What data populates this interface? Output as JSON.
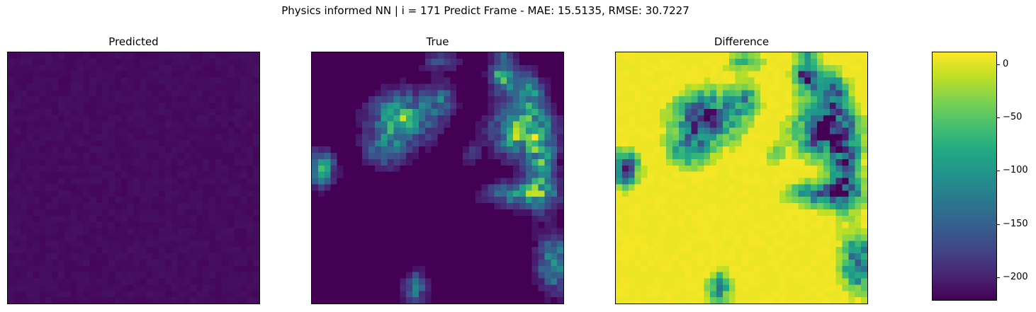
{
  "chart_data": {
    "type": "heatmap",
    "title": "Physics informed NN | i = 171 Predict Frame - MAE: 15.5135, RMSE: 30.7227",
    "panels": [
      {
        "name": "predicted",
        "title": "Predicted"
      },
      {
        "name": "true",
        "title": "True"
      },
      {
        "name": "difference",
        "title": "Difference"
      }
    ],
    "grid_size": [
      40,
      40
    ],
    "colormap": "viridis",
    "colorbar": {
      "range": [
        -222,
        12
      ],
      "ticks": [
        0,
        -50,
        -100,
        -150,
        -200
      ],
      "tick_labels": [
        "0",
        "−50",
        "−100",
        "−150",
        "−200"
      ]
    },
    "predicted_value_approx": -210,
    "blobs": [
      {
        "cx": 14,
        "cy": 10,
        "sx": 3.2,
        "sy": 2.6,
        "amp": 150
      },
      {
        "cx": 11,
        "cy": 15,
        "sx": 2.0,
        "sy": 1.8,
        "amp": 90
      },
      {
        "cx": 20,
        "cy": 7,
        "sx": 1.4,
        "sy": 2.0,
        "amp": 70
      },
      {
        "cx": 30,
        "cy": 3,
        "sx": 1.3,
        "sy": 2.2,
        "amp": 150
      },
      {
        "cx": 33,
        "cy": 12,
        "sx": 3.0,
        "sy": 2.6,
        "amp": 170
      },
      {
        "cx": 34,
        "cy": 6,
        "sx": 1.5,
        "sy": 2.0,
        "amp": 110
      },
      {
        "cx": 36,
        "cy": 18,
        "sx": 1.5,
        "sy": 4.0,
        "amp": 120
      },
      {
        "cx": 33,
        "cy": 22,
        "sx": 3.5,
        "sy": 1.3,
        "amp": 120
      },
      {
        "cx": 1,
        "cy": 18,
        "sx": 1.4,
        "sy": 1.8,
        "amp": 130
      },
      {
        "cx": 38,
        "cy": 33,
        "sx": 1.6,
        "sy": 2.8,
        "amp": 120
      },
      {
        "cx": 16,
        "cy": 37,
        "sx": 1.2,
        "sy": 1.6,
        "amp": 90
      },
      {
        "cx": 20,
        "cy": 1,
        "sx": 2.0,
        "sy": 1.0,
        "amp": 50
      },
      {
        "cx": 25,
        "cy": 16,
        "sx": 1.0,
        "sy": 1.2,
        "amp": 40
      }
    ]
  }
}
